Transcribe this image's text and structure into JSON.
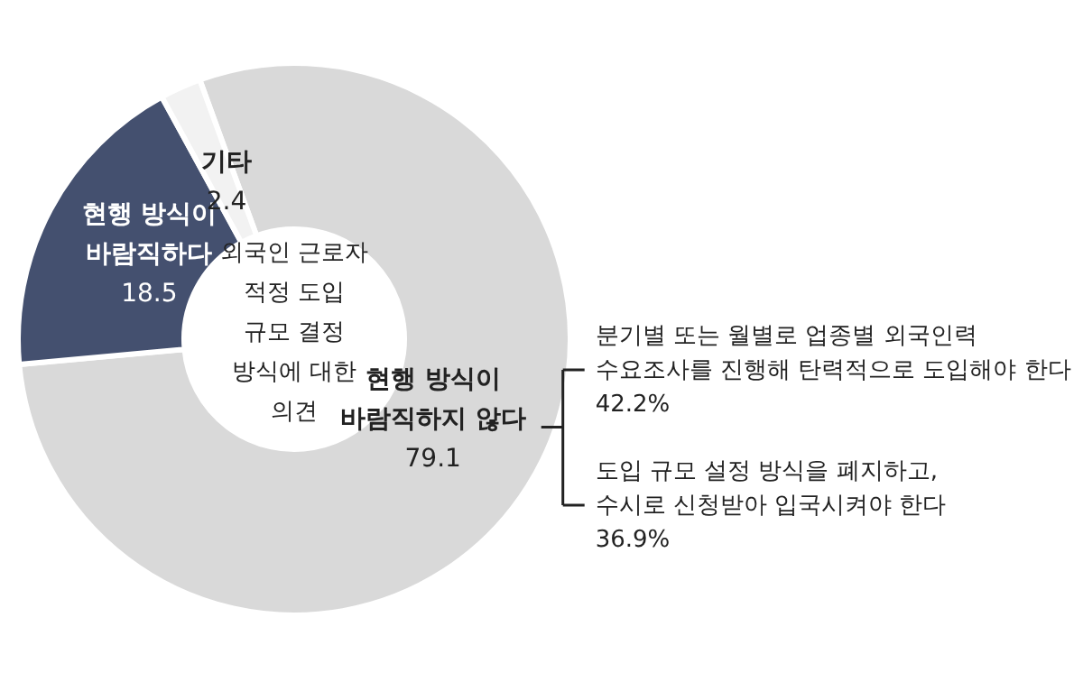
{
  "chart_data": {
    "type": "donut",
    "title": "외국인 근로자 적정 도입 규모 결정 방식에 대한 의견",
    "categories": [
      "현행 방식이 바람직하지 않다",
      "현행 방식이 바람직하다",
      "기타"
    ],
    "values": [
      79.1,
      18.5,
      2.4
    ],
    "colors": [
      "#d9d9d9",
      "#44506f",
      "#f2f2f2"
    ],
    "data_labels": true,
    "annotations": [
      "분기별 또는 월별로 업종별 외국인력\n수요조사를 진행해 탄력적으로 도입해야 한다\n42.2%",
      "도입 규모 설정 방식을 폐지하고,\n수시로 신청받아 입국시켜야 한다\n36.9%"
    ]
  }
}
